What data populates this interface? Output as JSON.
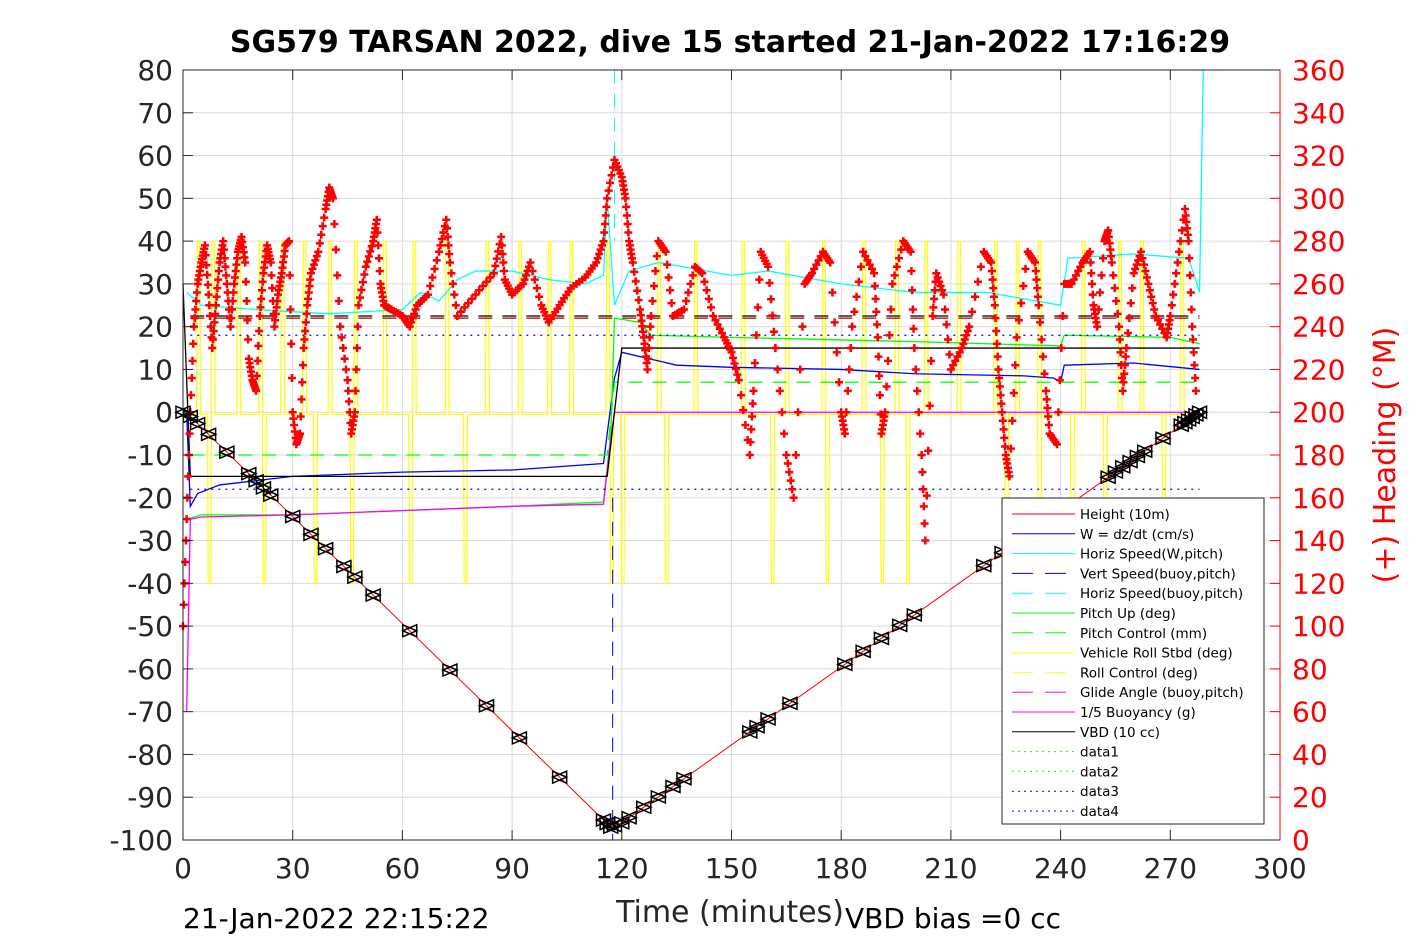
{
  "chart_data": {
    "type": "line",
    "title": "SG579 TARSAN 2022, dive 15 started 21-Jan-2022 17:16:29",
    "xlabel": "Time (minutes)",
    "ylabel_right": "(+) Heading (°M)",
    "xlim": [
      0,
      300
    ],
    "ylim": [
      -100,
      80
    ],
    "ylim_right": [
      0,
      360
    ],
    "xticks": [
      "0",
      "30",
      "60",
      "90",
      "120",
      "150",
      "180",
      "210",
      "240",
      "270",
      "300"
    ],
    "yticks": [
      "80",
      "70",
      "60",
      "50",
      "40",
      "30",
      "20",
      "10",
      "0",
      "-10",
      "-20",
      "-30",
      "-40",
      "-50",
      "-60",
      "-70",
      "-80",
      "-90",
      "-100"
    ],
    "yticks_right": [
      "360",
      "340",
      "320",
      "300",
      "280",
      "260",
      "240",
      "220",
      "200",
      "180",
      "160",
      "140",
      "120",
      "100",
      "80",
      "60",
      "40",
      "20",
      "0"
    ],
    "grid": true,
    "legend_position": "bottom-right",
    "footer_left": "21-Jan-2022 22:15:22",
    "footer_right": "VBD bias =0 cc",
    "legend": [
      "Height (10m)",
      "W = dz/dt (cm/s)",
      "Horiz Speed(W,pitch)",
      "Vert Speed(buoy,pitch)",
      "Horiz Speed(buoy,pitch)",
      "Pitch Up (deg)",
      "Pitch Control (mm)",
      "Vehicle Roll Stbd (deg)",
      "Roll Control (deg)",
      "Glide Angle (buoy,pitch)",
      "1/5 Buoyancy (g)",
      "VBD (10 cc)",
      "data1",
      "data2",
      "data3",
      "data4"
    ],
    "colors": {
      "height": "#ff0000",
      "w": "#0000ff",
      "horiz": "#00ffff",
      "pitch": "#00ff00",
      "roll": "#ffff00",
      "glide": "#ff00ff",
      "vbd": "#000000",
      "heading": "#ff0000"
    },
    "series": [
      {
        "name": "Height (10m)",
        "color": "#ff0000",
        "style": "solid",
        "points": [
          [
            0,
            0
          ],
          [
            2,
            -1
          ],
          [
            117,
            -97
          ],
          [
            120,
            -96
          ],
          [
            278,
            0
          ]
        ]
      },
      {
        "name": "W = dz/dt (cm/s)",
        "color": "#0000ff",
        "style": "solid",
        "points": [
          [
            1,
            0
          ],
          [
            2,
            -22
          ],
          [
            4,
            -19
          ],
          [
            10,
            -17
          ],
          [
            20,
            -16
          ],
          [
            30,
            -15
          ],
          [
            60,
            -14
          ],
          [
            90,
            -13.5
          ],
          [
            115,
            -12
          ],
          [
            116,
            -5
          ],
          [
            118,
            8
          ],
          [
            120,
            14
          ],
          [
            130,
            12
          ],
          [
            135,
            11
          ],
          [
            150,
            10.5
          ],
          [
            180,
            10
          ],
          [
            200,
            9
          ],
          [
            230,
            8.5
          ],
          [
            238,
            8
          ],
          [
            240,
            7
          ],
          [
            241,
            11
          ],
          [
            260,
            11.5
          ],
          [
            278,
            10
          ]
        ]
      },
      {
        "name": "Horiz Speed(W,pitch)",
        "color": "#00ffff",
        "style": "solid",
        "points": [
          [
            1,
            28
          ],
          [
            5,
            25
          ],
          [
            20,
            24
          ],
          [
            40,
            23
          ],
          [
            60,
            24
          ],
          [
            65,
            28
          ],
          [
            70,
            26
          ],
          [
            75,
            31
          ],
          [
            80,
            33
          ],
          [
            90,
            33
          ],
          [
            100,
            31
          ],
          [
            110,
            30
          ],
          [
            115,
            32
          ],
          [
            116,
            50
          ],
          [
            118,
            25
          ],
          [
            122,
            33
          ],
          [
            130,
            35
          ],
          [
            150,
            32
          ],
          [
            160,
            33
          ],
          [
            180,
            30
          ],
          [
            200,
            28
          ],
          [
            220,
            28
          ],
          [
            240,
            25
          ],
          [
            242,
            36
          ],
          [
            260,
            37
          ],
          [
            275,
            36
          ],
          [
            278,
            28
          ],
          [
            279,
            80
          ]
        ]
      },
      {
        "name": "Pitch Up (deg)",
        "color": "#00ff00",
        "style": "solid",
        "points": [
          [
            1,
            -25
          ],
          [
            5,
            -24
          ],
          [
            30,
            -24
          ],
          [
            60,
            -23
          ],
          [
            90,
            -22
          ],
          [
            115,
            -21
          ],
          [
            117,
            -5
          ],
          [
            118,
            22
          ],
          [
            125,
            21
          ],
          [
            128,
            18
          ],
          [
            150,
            17.5
          ],
          [
            200,
            16.5
          ],
          [
            240,
            15.5
          ],
          [
            241,
            18
          ],
          [
            270,
            17.5
          ],
          [
            278,
            16
          ]
        ]
      },
      {
        "name": "1/5 Buoyancy (g)",
        "color": "#ff00ff",
        "style": "solid",
        "points": [
          [
            1,
            -70
          ],
          [
            2,
            -25
          ],
          [
            5,
            -24.5
          ],
          [
            30,
            -24
          ],
          [
            60,
            -23
          ],
          [
            90,
            -22
          ],
          [
            115,
            -21.5
          ],
          [
            117,
            -6
          ],
          [
            118,
            0
          ],
          [
            278,
            0
          ]
        ]
      },
      {
        "name": "Pitch Control (mm)",
        "color": "#00ff00",
        "style": "dash",
        "points": [
          [
            2,
            -10
          ],
          [
            116,
            -10
          ],
          [
            118,
            7
          ],
          [
            278,
            7
          ]
        ]
      },
      {
        "name": "VBD (10 cc)",
        "color": "#000000",
        "style": "solid",
        "points": [
          [
            0,
            30
          ],
          [
            2,
            -15
          ],
          [
            116,
            -15
          ],
          [
            120,
            15
          ],
          [
            240,
            15
          ],
          [
            241,
            15
          ],
          [
            278,
            15
          ]
        ]
      },
      {
        "name": "data1",
        "color": "#000000",
        "style": "dash",
        "points": [
          [
            2,
            22.5
          ],
          [
            278,
            22.5
          ]
        ]
      },
      {
        "name": "data2",
        "color": "#aa0000",
        "style": "dash",
        "points": [
          [
            2,
            22
          ],
          [
            278,
            22
          ]
        ]
      },
      {
        "name": "data3",
        "color": "#0000ff",
        "style": "dot",
        "points": [
          [
            2,
            18
          ],
          [
            278,
            18
          ]
        ]
      },
      {
        "name": "data4",
        "color": "#0000ff",
        "style": "dot",
        "points": [
          [
            2,
            -18
          ],
          [
            278,
            -18
          ]
        ]
      }
    ],
    "roll_up_spikes": [
      4,
      8,
      15,
      21,
      27,
      33,
      40,
      47,
      55,
      63,
      72,
      83,
      92,
      100,
      106,
      116,
      130,
      140,
      153,
      165,
      175,
      186,
      195,
      203,
      212,
      222,
      228,
      234,
      246,
      256,
      262,
      273
    ],
    "roll_down_spikes": [
      7,
      22,
      36,
      46,
      62,
      77,
      117,
      120,
      132,
      161,
      176,
      191,
      198,
      225,
      234,
      243,
      252,
      268
    ],
    "depth_markers": [
      0,
      2,
      4,
      7,
      12,
      18,
      20,
      22,
      24,
      30,
      35,
      39,
      44,
      47,
      52,
      62,
      73,
      83,
      92,
      103,
      115,
      116,
      117,
      118,
      120,
      122,
      126,
      130,
      134,
      137,
      155,
      157,
      160,
      166,
      181,
      186,
      191,
      196,
      200,
      219,
      224,
      253,
      255,
      257,
      259,
      261,
      263,
      268,
      273,
      274,
      275,
      276,
      277,
      278
    ],
    "heading": [
      [
        0,
        100
      ],
      [
        1,
        150
      ],
      [
        2,
        200
      ],
      [
        3,
        240
      ],
      [
        4,
        260
      ],
      [
        5,
        270
      ],
      [
        6,
        278
      ],
      [
        7,
        255
      ],
      [
        8,
        230
      ],
      [
        9,
        250
      ],
      [
        10,
        270
      ],
      [
        11,
        280
      ],
      [
        12,
        260
      ],
      [
        13,
        240
      ],
      [
        14,
        260
      ],
      [
        15,
        275
      ],
      [
        16,
        282
      ],
      [
        17,
        270
      ],
      [
        18,
        225
      ],
      [
        19,
        215
      ],
      [
        20,
        210
      ],
      [
        21,
        245
      ],
      [
        22,
        265
      ],
      [
        23,
        278
      ],
      [
        24,
        270
      ],
      [
        25,
        240
      ],
      [
        26,
        255
      ],
      [
        27,
        265
      ],
      [
        28,
        278
      ],
      [
        29,
        280
      ],
      [
        30,
        200
      ],
      [
        31,
        185
      ],
      [
        32,
        190
      ],
      [
        33,
        230
      ],
      [
        34,
        250
      ],
      [
        35,
        265
      ],
      [
        37,
        275
      ],
      [
        39,
        295
      ],
      [
        40,
        305
      ],
      [
        41,
        300
      ],
      [
        43,
        240
      ],
      [
        45,
        215
      ],
      [
        46,
        190
      ],
      [
        47,
        200
      ],
      [
        48,
        250
      ],
      [
        50,
        268
      ],
      [
        52,
        280
      ],
      [
        53,
        290
      ],
      [
        54,
        260
      ],
      [
        55,
        250
      ],
      [
        57,
        248
      ],
      [
        60,
        245
      ],
      [
        62,
        240
      ],
      [
        64,
        250
      ],
      [
        67,
        255
      ],
      [
        70,
        275
      ],
      [
        72,
        290
      ],
      [
        73,
        270
      ],
      [
        75,
        245
      ],
      [
        80,
        255
      ],
      [
        85,
        265
      ],
      [
        87,
        282
      ],
      [
        88,
        262
      ],
      [
        90,
        255
      ],
      [
        93,
        260
      ],
      [
        95,
        270
      ],
      [
        98,
        250
      ],
      [
        100,
        242
      ],
      [
        103,
        250
      ],
      [
        106,
        258
      ],
      [
        110,
        263
      ],
      [
        113,
        270
      ],
      [
        115,
        280
      ],
      [
        116,
        300
      ],
      [
        118,
        318
      ],
      [
        120,
        310
      ],
      [
        121,
        300
      ],
      [
        122,
        280
      ],
      [
        123,
        270
      ],
      [
        125,
        248
      ],
      [
        126,
        235
      ],
      [
        127,
        220
      ],
      [
        128,
        245
      ],
      [
        130,
        280
      ],
      [
        132,
        275
      ],
      [
        134,
        245
      ],
      [
        137,
        248
      ],
      [
        140,
        268
      ],
      [
        142,
        265
      ],
      [
        145,
        245
      ],
      [
        148,
        235
      ],
      [
        150,
        228
      ],
      [
        152,
        215
      ],
      [
        155,
        180
      ],
      [
        156,
        210
      ],
      [
        158,
        275
      ],
      [
        160,
        268
      ],
      [
        162,
        230
      ],
      [
        165,
        180
      ],
      [
        167,
        160
      ],
      [
        170,
        260
      ],
      [
        172,
        265
      ],
      [
        175,
        275
      ],
      [
        177,
        270
      ],
      [
        180,
        200
      ],
      [
        181,
        190
      ],
      [
        183,
        240
      ],
      [
        186,
        275
      ],
      [
        189,
        265
      ],
      [
        190,
        235
      ],
      [
        191,
        190
      ],
      [
        192,
        200
      ],
      [
        194,
        260
      ],
      [
        197,
        280
      ],
      [
        199,
        275
      ],
      [
        200,
        230
      ],
      [
        202,
        180
      ],
      [
        203,
        140
      ],
      [
        205,
        245
      ],
      [
        206,
        265
      ],
      [
        208,
        255
      ],
      [
        210,
        220
      ],
      [
        213,
        230
      ],
      [
        215,
        240
      ],
      [
        219,
        275
      ],
      [
        221,
        270
      ],
      [
        222,
        250
      ],
      [
        223,
        220
      ],
      [
        224,
        200
      ],
      [
        225,
        180
      ],
      [
        226,
        170
      ],
      [
        228,
        235
      ],
      [
        231,
        275
      ],
      [
        233,
        270
      ],
      [
        234,
        250
      ],
      [
        236,
        210
      ],
      [
        237,
        190
      ],
      [
        239,
        185
      ],
      [
        241,
        260
      ],
      [
        243,
        260
      ],
      [
        246,
        270
      ],
      [
        248,
        275
      ],
      [
        249,
        250
      ],
      [
        250,
        240
      ],
      [
        252,
        280
      ],
      [
        253,
        285
      ],
      [
        254,
        270
      ],
      [
        256,
        240
      ],
      [
        257,
        210
      ],
      [
        258,
        230
      ],
      [
        260,
        265
      ],
      [
        262,
        275
      ],
      [
        264,
        260
      ],
      [
        266,
        245
      ],
      [
        269,
        235
      ],
      [
        270,
        245
      ],
      [
        272,
        270
      ],
      [
        274,
        295
      ],
      [
        275,
        280
      ],
      [
        276,
        240
      ],
      [
        277,
        210
      ]
    ]
  }
}
